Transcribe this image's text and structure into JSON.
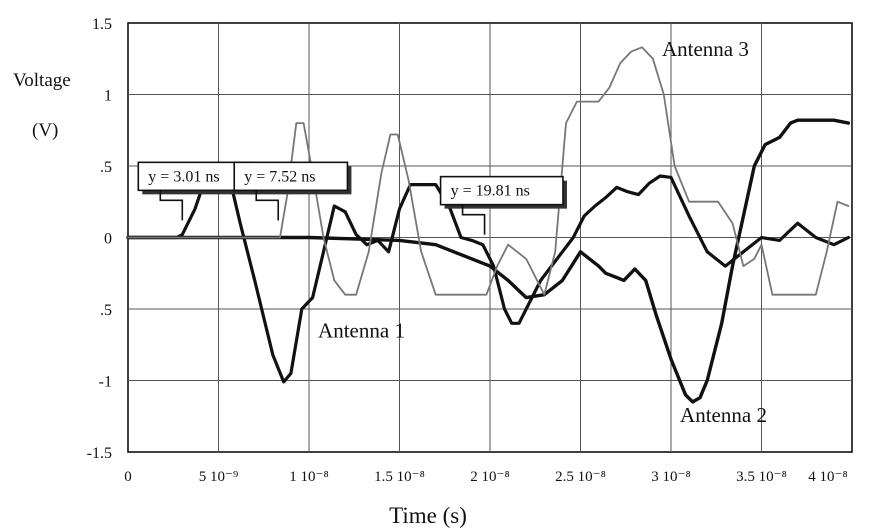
{
  "chart_data": {
    "type": "line",
    "title": "",
    "xlabel": "Time (s)",
    "ylabel": "Voltage",
    "ylabel_unit": "(V)",
    "xlim": [
      0,
      4.0
    ],
    "ylim": [
      -1.5,
      1.5
    ],
    "grid": true,
    "x_ticks": [
      0,
      0.5,
      1.0,
      1.5,
      2.0,
      2.5,
      3.0,
      3.5,
      4.0
    ],
    "x_tick_labels": [
      "0",
      "5 10⁻⁹",
      "1 10⁻⁸",
      "1.5 10⁻⁸",
      "2 10⁻⁸",
      "2.5 10⁻⁸",
      "3 10⁻⁸",
      "3.5 10⁻⁸",
      "4 10⁻⁸"
    ],
    "y_ticks": [
      1.5,
      1,
      0.5,
      0,
      -0.5,
      -1,
      -1.5
    ],
    "y_tick_labels": [
      "1.5",
      "1",
      ".5",
      "0",
      ".5",
      "-1",
      "-1.5"
    ],
    "annotations": [
      {
        "text": "y = 3.01 ns",
        "x": 0.3,
        "y": 0.12
      },
      {
        "text": "y = 7.52 ns",
        "x": 0.83,
        "y": 0.12
      },
      {
        "text": "y = 19.81 ns",
        "x": 1.97,
        "y": 0.02
      }
    ],
    "series_labels": [
      {
        "text": "Antenna 1",
        "x": 1.05,
        "y": -0.7
      },
      {
        "text": "Antenna 2",
        "x": 3.05,
        "y": -1.29
      },
      {
        "text": "Antenna 3",
        "x": 2.95,
        "y": 1.27
      }
    ],
    "series": [
      {
        "name": "Antenna 1",
        "color": "#111111",
        "width": 3.2,
        "x": [
          0,
          0.2,
          0.27,
          0.3,
          0.37,
          0.43,
          0.5,
          0.56,
          0.62,
          0.7,
          0.8,
          0.86,
          0.9,
          0.96,
          1.02,
          1.08,
          1.14,
          1.2,
          1.26,
          1.32,
          1.38,
          1.44,
          1.5,
          1.56,
          1.62,
          1.7,
          1.78,
          1.84,
          1.9,
          1.96,
          2.02,
          2.08,
          2.12,
          2.16,
          2.22,
          2.28,
          2.34,
          2.4,
          2.46,
          2.52,
          2.58,
          2.64,
          2.7,
          2.76,
          2.82,
          2.88,
          2.94,
          3.0,
          3.1,
          3.2,
          3.3,
          3.4,
          3.5,
          3.6,
          3.7,
          3.8,
          3.9,
          3.98
        ],
        "y": [
          0,
          0,
          0,
          0.02,
          0.2,
          0.42,
          0.42,
          0.42,
          0.1,
          -0.3,
          -0.82,
          -1.01,
          -0.95,
          -0.5,
          -0.42,
          -0.1,
          0.22,
          0.18,
          0.02,
          -0.05,
          -0.02,
          -0.1,
          0.2,
          0.37,
          0.37,
          0.37,
          0.2,
          0.0,
          -0.02,
          -0.05,
          -0.2,
          -0.5,
          -0.6,
          -0.6,
          -0.45,
          -0.3,
          -0.2,
          -0.1,
          0.0,
          0.15,
          0.22,
          0.28,
          0.35,
          0.32,
          0.3,
          0.38,
          0.43,
          0.42,
          0.15,
          -0.1,
          -0.2,
          -0.1,
          0.0,
          -0.02,
          0.1,
          0.0,
          -0.05,
          0.0
        ]
      },
      {
        "name": "Antenna 2",
        "color": "#111111",
        "width": 3.4,
        "x": [
          0,
          0.5,
          1.0,
          1.5,
          1.7,
          1.8,
          1.9,
          2.0,
          2.1,
          2.2,
          2.3,
          2.4,
          2.5,
          2.6,
          2.64,
          2.7,
          2.74,
          2.8,
          2.86,
          2.92,
          3.0,
          3.08,
          3.12,
          3.16,
          3.2,
          3.28,
          3.34,
          3.4,
          3.46,
          3.52,
          3.6,
          3.66,
          3.7,
          3.74,
          3.8,
          3.9,
          3.98
        ],
        "y": [
          0,
          0,
          0,
          -0.02,
          -0.05,
          -0.1,
          -0.15,
          -0.2,
          -0.3,
          -0.42,
          -0.4,
          -0.3,
          -0.1,
          -0.2,
          -0.25,
          -0.28,
          -0.3,
          -0.22,
          -0.3,
          -0.55,
          -0.85,
          -1.1,
          -1.15,
          -1.12,
          -1.0,
          -0.6,
          -0.2,
          0.15,
          0.5,
          0.65,
          0.7,
          0.8,
          0.82,
          0.82,
          0.82,
          0.82,
          0.8
        ]
      },
      {
        "name": "Antenna 3",
        "color": "#777777",
        "width": 1.8,
        "x": [
          0,
          0.84,
          0.88,
          0.93,
          0.97,
          1.02,
          1.08,
          1.14,
          1.2,
          1.26,
          1.33,
          1.4,
          1.45,
          1.49,
          1.55,
          1.62,
          1.7,
          1.8,
          1.9,
          1.98,
          2.04,
          2.1,
          2.2,
          2.3,
          2.36,
          2.42,
          2.48,
          2.54,
          2.6,
          2.66,
          2.72,
          2.78,
          2.84,
          2.9,
          2.96,
          3.02,
          3.1,
          3.18,
          3.26,
          3.34,
          3.4,
          3.46,
          3.5,
          3.56,
          3.64,
          3.72,
          3.8,
          3.86,
          3.92,
          3.98
        ],
        "y": [
          0,
          0,
          0.3,
          0.8,
          0.8,
          0.45,
          0.0,
          -0.3,
          -0.4,
          -0.4,
          -0.1,
          0.45,
          0.72,
          0.72,
          0.4,
          -0.1,
          -0.4,
          -0.4,
          -0.4,
          -0.4,
          -0.2,
          -0.05,
          -0.15,
          -0.4,
          -0.1,
          0.8,
          0.95,
          0.95,
          0.95,
          1.05,
          1.22,
          1.3,
          1.33,
          1.25,
          1.0,
          0.5,
          0.25,
          0.25,
          0.25,
          0.1,
          -0.2,
          -0.15,
          -0.05,
          -0.4,
          -0.4,
          -0.4,
          -0.4,
          -0.1,
          0.25,
          0.22
        ]
      }
    ]
  }
}
